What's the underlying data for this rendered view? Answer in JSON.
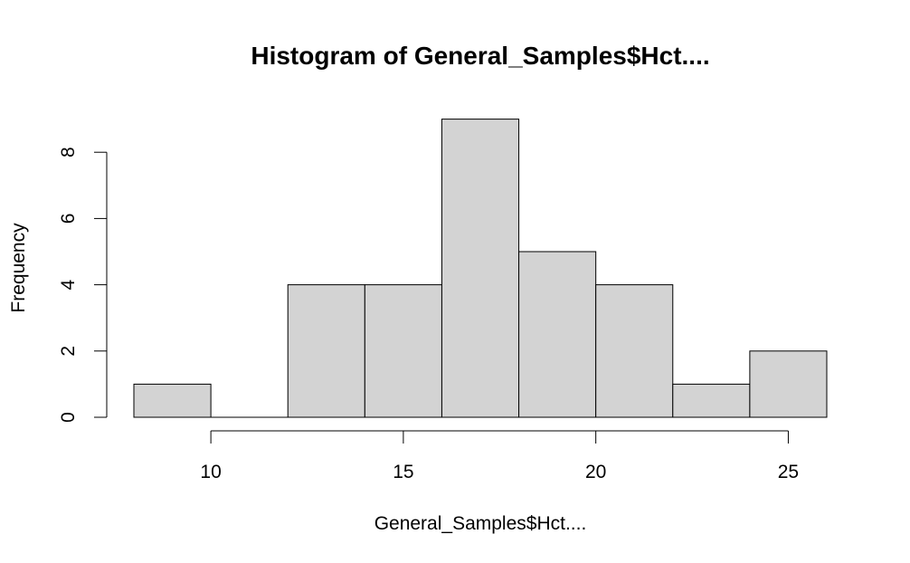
{
  "chart_data": {
    "type": "bar",
    "title": "Histogram of General_Samples$Hct....",
    "xlabel": "General_Samples$Hct....",
    "ylabel": "Frequency",
    "bins": [
      {
        "start": 8,
        "end": 10,
        "count": 1
      },
      {
        "start": 10,
        "end": 12,
        "count": 0
      },
      {
        "start": 12,
        "end": 14,
        "count": 4
      },
      {
        "start": 14,
        "end": 16,
        "count": 4
      },
      {
        "start": 16,
        "end": 18,
        "count": 9
      },
      {
        "start": 18,
        "end": 20,
        "count": 5
      },
      {
        "start": 20,
        "end": 22,
        "count": 4
      },
      {
        "start": 22,
        "end": 24,
        "count": 1
      },
      {
        "start": 24,
        "end": 26,
        "count": 2
      }
    ],
    "xticks": [
      10,
      15,
      20,
      25
    ],
    "yticks": [
      0,
      2,
      4,
      6,
      8
    ],
    "xlim": [
      8,
      26
    ],
    "ylim": [
      0,
      9
    ],
    "bar_color": "#d3d3d3",
    "grid": false
  }
}
